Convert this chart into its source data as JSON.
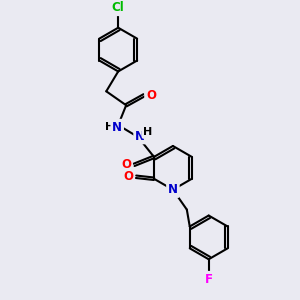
{
  "bg_color": "#eaeaf2",
  "bond_color": "#000000",
  "atom_colors": {
    "N": "#0000cc",
    "O": "#ff0000",
    "Cl": "#00bb00",
    "F": "#ff00ff"
  },
  "font_size": 8.5,
  "lw": 1.5,
  "ring_r": 22,
  "inner_sep": 3.0
}
